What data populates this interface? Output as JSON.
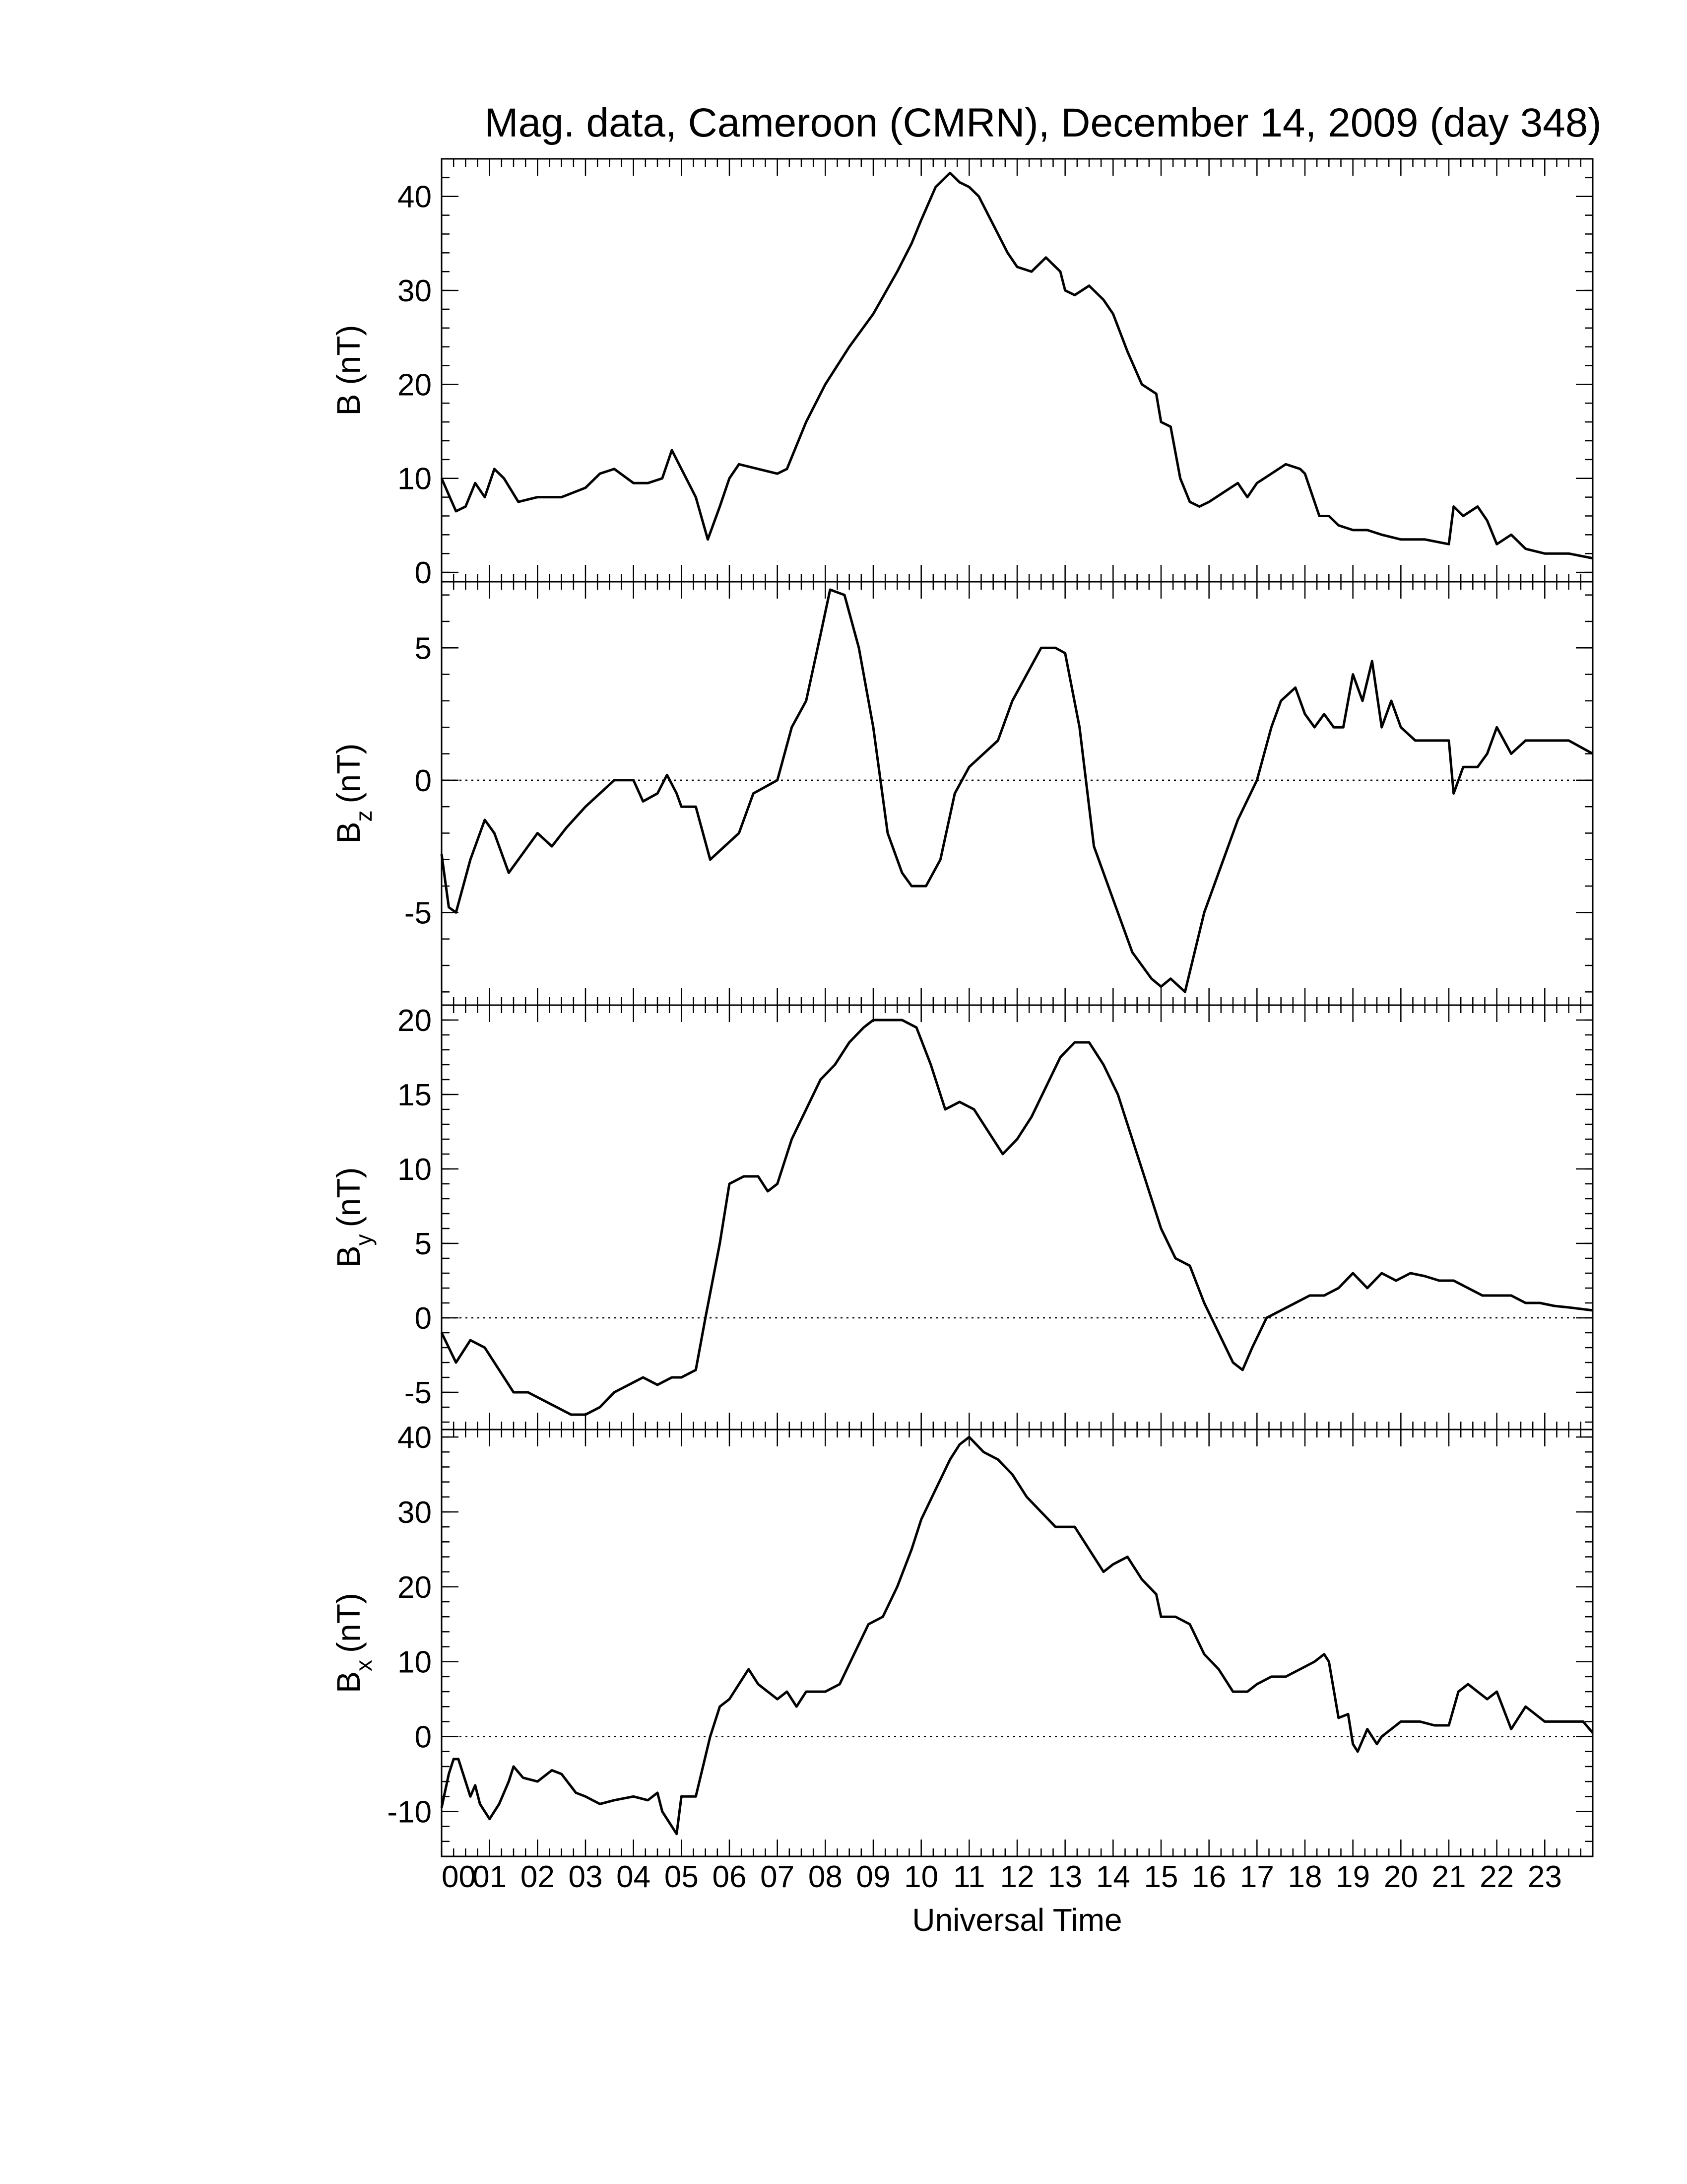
{
  "chart_data": {
    "type": "line",
    "title": "Mag. data, Cameroon (CMRN), December 14, 2009 (day 348)",
    "xlabel": "Universal Time",
    "xlim": [
      0,
      24
    ],
    "x_tick_labels": [
      "00",
      "01",
      "02",
      "03",
      "04",
      "05",
      "06",
      "07",
      "08",
      "09",
      "10",
      "11",
      "12",
      "13",
      "14",
      "15",
      "16",
      "17",
      "18",
      "19",
      "20",
      "21",
      "22",
      "23"
    ],
    "panels": [
      {
        "id": "B",
        "ylabel": "B (nT)",
        "ylabel_main": "B",
        "ylabel_sub": "",
        "ylabel_unit": "(nT)",
        "ylim": [
          -1,
          44
        ],
        "yticks": [
          0,
          10,
          20,
          30,
          40
        ],
        "zero_line": false,
        "series": [
          {
            "x": [
              0,
              0.3,
              0.5,
              0.7,
              0.9,
              1.1,
              1.3,
              1.6,
              2.0,
              2.5,
              3.0,
              3.3,
              3.6,
              4.0,
              4.3,
              4.6,
              4.8,
              4.9,
              5.0,
              5.3,
              5.55,
              5.8,
              6.0,
              6.2,
              6.6,
              7.0,
              7.2,
              7.6,
              8.0,
              8.5,
              9.0,
              9.5,
              9.8,
              10.0,
              10.3,
              10.6,
              10.8,
              11.0,
              11.2,
              11.5,
              11.8,
              12.0,
              12.3,
              12.6,
              12.9,
              13.0,
              13.2,
              13.5,
              13.8,
              14.0,
              14.3,
              14.6,
              14.9,
              15.0,
              15.2,
              15.4,
              15.6,
              15.8,
              16.0,
              16.3,
              16.6,
              16.8,
              17.0,
              17.3,
              17.6,
              17.9,
              18.0,
              18.3,
              18.5,
              18.7,
              19.0,
              19.3,
              19.6,
              20.0,
              20.5,
              21.0,
              21.1,
              21.3,
              21.6,
              21.8,
              22.0,
              22.3,
              22.6,
              23.0,
              23.5,
              24.0
            ],
            "y": [
              10,
              6.5,
              7,
              9.5,
              8,
              11,
              10,
              7.5,
              8,
              8,
              9,
              10.5,
              11,
              9.5,
              9.5,
              10,
              13,
              12,
              11,
              8,
              3.5,
              7,
              10,
              11.5,
              11,
              10.5,
              11,
              16,
              20,
              24,
              27.5,
              32,
              35,
              37.5,
              41,
              42.5,
              41.5,
              41,
              40,
              37,
              34,
              32.5,
              32,
              33.5,
              32,
              30,
              29.5,
              30.5,
              29,
              27.5,
              23.5,
              20,
              19,
              16,
              15.5,
              10,
              7.5,
              7,
              7.5,
              8.5,
              9.5,
              8,
              9.5,
              10.5,
              11.5,
              11,
              10.5,
              6,
              6,
              5,
              4.5,
              4.5,
              4,
              3.5,
              3.5,
              3,
              7,
              6,
              7,
              5.5,
              3,
              4,
              2.5,
              2,
              2,
              1.5
            ]
          }
        ]
      },
      {
        "id": "Bz",
        "ylabel": "Bz (nT)",
        "ylabel_main": "B",
        "ylabel_sub": "z",
        "ylabel_unit": "(nT)",
        "ylim": [
          -8.5,
          7.5
        ],
        "yticks": [
          -5,
          0,
          5
        ],
        "zero_line": true,
        "series": [
          {
            "x": [
              0,
              0.15,
              0.3,
              0.6,
              0.9,
              1.1,
              1.4,
              1.6,
              2.0,
              2.3,
              2.6,
              3.0,
              3.3,
              3.6,
              4.0,
              4.2,
              4.5,
              4.7,
              4.9,
              5.0,
              5.3,
              5.6,
              5.9,
              6.2,
              6.5,
              6.8,
              7.0,
              7.3,
              7.6,
              7.9,
              8.1,
              8.4,
              8.7,
              9.0,
              9.3,
              9.6,
              9.8,
              10.1,
              10.4,
              10.7,
              11.0,
              11.3,
              11.6,
              11.9,
              12.2,
              12.5,
              12.8,
              13.0,
              13.3,
              13.6,
              14.0,
              14.4,
              14.8,
              15.0,
              15.2,
              15.5,
              15.9,
              16.2,
              16.6,
              17.0,
              17.3,
              17.5,
              17.8,
              18.0,
              18.2,
              18.4,
              18.6,
              18.8,
              19.0,
              19.2,
              19.4,
              19.6,
              19.8,
              20.0,
              20.3,
              20.6,
              20.9,
              21.0,
              21.1,
              21.3,
              21.6,
              21.8,
              22.0,
              22.3,
              22.6,
              23.0,
              23.5,
              24.0
            ],
            "y": [
              -2.8,
              -4.8,
              -5,
              -3,
              -1.5,
              -2,
              -3.5,
              -3,
              -2,
              -2.5,
              -1.8,
              -1,
              -0.5,
              0,
              0,
              -0.8,
              -0.5,
              0.2,
              -0.5,
              -1,
              -1,
              -3,
              -2.5,
              -2,
              -0.5,
              -0.2,
              0,
              2,
              3,
              5.5,
              7.2,
              7,
              5,
              2,
              -2,
              -3.5,
              -4,
              -4,
              -3,
              -0.5,
              0.5,
              1,
              1.5,
              3,
              4,
              5,
              5,
              4.8,
              2,
              -2.5,
              -4.5,
              -6.5,
              -7.5,
              -7.8,
              -7.5,
              -8,
              -5,
              -3.5,
              -1.5,
              0,
              2,
              3,
              3.5,
              2.5,
              2,
              2.5,
              2,
              2,
              4,
              3,
              4.5,
              2,
              3,
              2,
              1.5,
              1.5,
              1.5,
              1.5,
              -0.5,
              0.5,
              0.5,
              1,
              2,
              1,
              1.5,
              1.5,
              1.5,
              1
            ]
          }
        ]
      },
      {
        "id": "By",
        "ylabel": "By (nT)",
        "ylabel_main": "B",
        "ylabel_sub": "y",
        "ylabel_unit": "(nT)",
        "ylim": [
          -7.5,
          21
        ],
        "yticks": [
          -5,
          0,
          5,
          10,
          15,
          20
        ],
        "zero_line": true,
        "series": [
          {
            "x": [
              0,
              0.3,
              0.6,
              0.9,
              1.2,
              1.5,
              1.8,
              2.1,
              2.4,
              2.7,
              3.0,
              3.3,
              3.6,
              3.9,
              4.2,
              4.5,
              4.8,
              5.0,
              5.3,
              5.5,
              5.8,
              6.0,
              6.3,
              6.6,
              6.8,
              7.0,
              7.3,
              7.6,
              7.9,
              8.2,
              8.5,
              8.8,
              9.0,
              9.3,
              9.6,
              9.9,
              10.2,
              10.5,
              10.8,
              11.1,
              11.4,
              11.7,
              12.0,
              12.3,
              12.6,
              12.9,
              13.2,
              13.5,
              13.8,
              14.1,
              14.4,
              14.7,
              15.0,
              15.3,
              15.6,
              15.9,
              16.2,
              16.5,
              16.7,
              16.9,
              17.2,
              17.5,
              17.8,
              18.1,
              18.4,
              18.7,
              19.0,
              19.3,
              19.6,
              19.9,
              20.2,
              20.5,
              20.8,
              21.1,
              21.4,
              21.7,
              22.0,
              22.3,
              22.6,
              22.9,
              23.2,
              23.5,
              24.0
            ],
            "y": [
              -1,
              -3,
              -1.5,
              -2,
              -3.5,
              -5,
              -5,
              -5.5,
              -6,
              -6.5,
              -6.5,
              -6,
              -5,
              -4.5,
              -4,
              -4.5,
              -4,
              -4,
              -3.5,
              0,
              5,
              9,
              9.5,
              9.5,
              8.5,
              9,
              12,
              14,
              16,
              17,
              18.5,
              19.5,
              20,
              20,
              20,
              19.5,
              17,
              14,
              14.5,
              14,
              12.5,
              11,
              12,
              13.5,
              15.5,
              17.5,
              18.5,
              18.5,
              17,
              15,
              12,
              9,
              6,
              4,
              3.5,
              1,
              -1,
              -3,
              -3.5,
              -2,
              0,
              0.5,
              1,
              1.5,
              1.5,
              2,
              3,
              2,
              3,
              2.5,
              3,
              2.8,
              2.5,
              2.5,
              2,
              1.5,
              1.5,
              1.5,
              1,
              1,
              0.8,
              0.7,
              0.5
            ]
          }
        ]
      },
      {
        "id": "Bx",
        "ylabel": "Bx (nT)",
        "ylabel_main": "B",
        "ylabel_sub": "x",
        "ylabel_unit": "(nT)",
        "ylim": [
          -16,
          41
        ],
        "yticks": [
          -10,
          0,
          10,
          20,
          30,
          40
        ],
        "zero_line": true,
        "series": [
          {
            "x": [
              0,
              0.15,
              0.25,
              0.35,
              0.5,
              0.6,
              0.7,
              0.8,
              0.9,
              1.0,
              1.2,
              1.4,
              1.5,
              1.7,
              2.0,
              2.3,
              2.5,
              2.8,
              3.0,
              3.3,
              3.6,
              4.0,
              4.3,
              4.5,
              4.6,
              4.8,
              4.9,
              5.0,
              5.3,
              5.6,
              5.8,
              6.0,
              6.2,
              6.4,
              6.6,
              6.8,
              7.0,
              7.2,
              7.4,
              7.6,
              7.8,
              8.0,
              8.3,
              8.6,
              8.9,
              9.2,
              9.5,
              9.8,
              10.0,
              10.3,
              10.6,
              10.8,
              11.0,
              11.3,
              11.6,
              11.9,
              12.2,
              12.5,
              12.8,
              13.0,
              13.2,
              13.5,
              13.8,
              14.0,
              14.3,
              14.6,
              14.9,
              15.0,
              15.3,
              15.6,
              15.9,
              16.2,
              16.5,
              16.8,
              17.0,
              17.3,
              17.6,
              17.9,
              18.2,
              18.4,
              18.5,
              18.7,
              18.9,
              19.0,
              19.1,
              19.3,
              19.5,
              19.6,
              19.8,
              20.0,
              20.2,
              20.4,
              20.7,
              21.0,
              21.2,
              21.4,
              21.6,
              21.8,
              22.0,
              22.3,
              22.6,
              23.0,
              23.3,
              23.6,
              23.8,
              24.0
            ],
            "y": [
              -9.5,
              -5,
              -3,
              -3,
              -6,
              -8,
              -6.5,
              -9,
              -10,
              -11,
              -9,
              -6,
              -4,
              -5.5,
              -6,
              -4.5,
              -5,
              -7.5,
              -8,
              -9,
              -8.5,
              -8,
              -8.5,
              -7.5,
              -10,
              -12,
              -13,
              -8,
              -8,
              0,
              4,
              5,
              7,
              9,
              7,
              6,
              5,
              6,
              4,
              6,
              6,
              6,
              7,
              11,
              15,
              16,
              20,
              25,
              29,
              33,
              37,
              39,
              40,
              38,
              37,
              35,
              32,
              30,
              28,
              28,
              28,
              25,
              22,
              23,
              24,
              21,
              19,
              16,
              16,
              15,
              11,
              9,
              6,
              6,
              7,
              8,
              8,
              9,
              10,
              11,
              10,
              2.5,
              3,
              -1,
              -2,
              1,
              -1,
              0,
              1,
              2,
              2,
              2,
              1.5,
              1.5,
              6,
              7,
              6,
              5,
              6,
              1,
              4,
              2,
              2,
              2,
              2,
              0.5
            ]
          }
        ]
      }
    ]
  }
}
